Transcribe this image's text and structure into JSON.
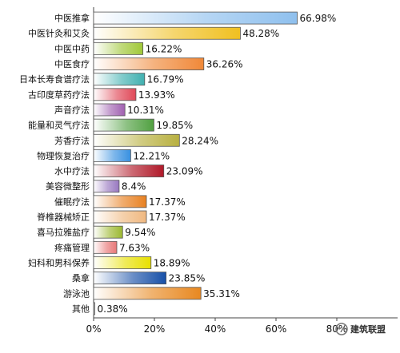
{
  "chart_data": {
    "type": "bar",
    "orientation": "horizontal",
    "categories": [
      "中医推拿",
      "中医针灸和艾灸",
      "中医中药",
      "中医食疗",
      "日本长寿食谱疗法",
      "古印度草药疗法",
      "声音疗法",
      "能量和灵气疗法",
      "芳香疗法",
      "物理恢复治疗",
      "水中疗法",
      "美容微整形",
      "催眠疗法",
      "脊椎器械矫正",
      "喜马拉雅盐疗",
      "疼痛管理",
      "妇科和男科保养",
      "桑拿",
      "游泳池",
      "其他"
    ],
    "values": [
      66.98,
      48.28,
      16.22,
      36.26,
      16.79,
      13.93,
      10.31,
      19.85,
      28.24,
      12.21,
      23.09,
      8.4,
      17.37,
      17.37,
      9.54,
      7.63,
      18.89,
      23.85,
      35.31,
      0.38
    ],
    "value_labels": [
      "66.98%",
      "48.28%",
      "16.22%",
      "36.26%",
      "16.79%",
      "13.93%",
      "10.31%",
      "19.85%",
      "28.24%",
      "12.21%",
      "23.09%",
      "8.4%",
      "17.37%",
      "17.37%",
      "9.54%",
      "7.63%",
      "18.89%",
      "23.85%",
      "35.31%",
      "0.38%"
    ],
    "colors": [
      "#8fc0ee",
      "#f0c020",
      "#a0c838",
      "#f08838",
      "#40b0b0",
      "#e04858",
      "#a060b0",
      "#50a040",
      "#b8b040",
      "#3890e0",
      "#b01828",
      "#9878c0",
      "#e88020",
      "#f0b880",
      "#9cb830",
      "#e87878",
      "#e8e000",
      "#1850a8",
      "#e88820",
      "#b0b0b0"
    ],
    "ticks": [
      "0%",
      "20%",
      "40%",
      "60%",
      "80%"
    ],
    "tick_values": [
      0,
      20,
      40,
      60,
      80
    ],
    "xlim": [
      0,
      100
    ],
    "grid": false,
    "watermark": "建筑联盟"
  }
}
